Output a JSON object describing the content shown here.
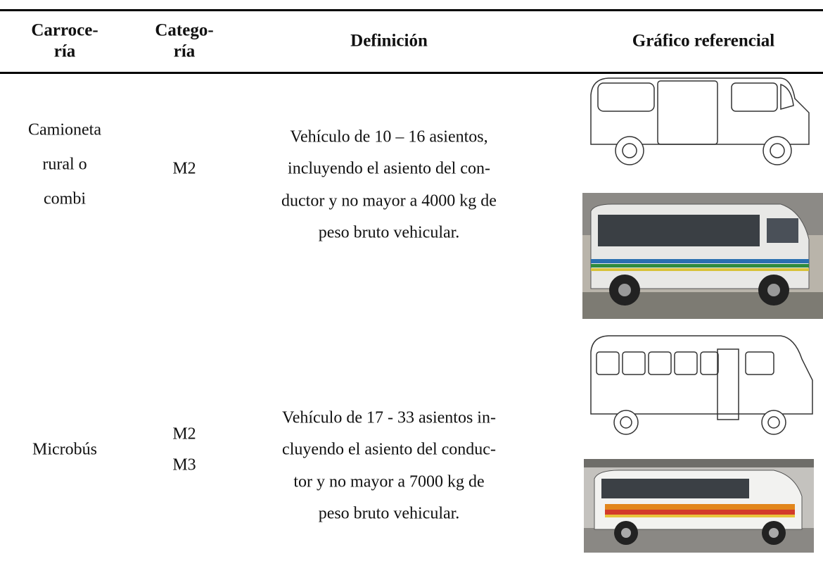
{
  "table": {
    "headers": [
      [
        "Carroce-",
        "ría"
      ],
      [
        "Catego-",
        "ría"
      ],
      [
        "Definición"
      ],
      [
        "Gráfico referencial"
      ]
    ],
    "rows": [
      [
        [
          "Camioneta",
          "rural o",
          "combi"
        ],
        [
          "M2"
        ],
        [
          "Vehículo de 10 – 16 asientos,",
          "incluyendo el asiento del con-",
          "ductor y no mayor a 4000 kg de",
          "peso bruto vehicular."
        ]
      ],
      [
        [
          "Microbús"
        ],
        [
          "M2",
          "M3"
        ],
        [
          "Vehículo de 17 - 33 asientos in-",
          "cluyendo el asiento del conduc-",
          "tor y no mayor a 7000 kg de",
          "peso bruto vehicular."
        ]
      ]
    ]
  }
}
